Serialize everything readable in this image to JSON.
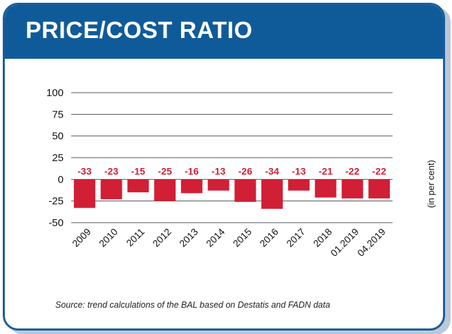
{
  "header": {
    "title": "PRICE/COST RATIO"
  },
  "chart_data": {
    "type": "bar",
    "title": "PRICE/COST RATIO",
    "ylabel": "(in per cent)",
    "xlabel": "",
    "categories": [
      "2009",
      "2010",
      "2011",
      "2012",
      "2013",
      "2014",
      "2015",
      "2016",
      "2017",
      "2018",
      "01.2019",
      "04.2019"
    ],
    "values": [
      -33,
      -23,
      -15,
      -25,
      -16,
      -13,
      -26,
      -34,
      -13,
      -21,
      -22,
      -22
    ],
    "data_labels": [
      "-33",
      "-23",
      "-15",
      "-25",
      "-16",
      "-13",
      "-26",
      "-34",
      "-13",
      "-21",
      "-22",
      "-22"
    ],
    "ylim": [
      -50,
      100
    ],
    "yticks": [
      100,
      75,
      50,
      25,
      0,
      -25,
      -50
    ],
    "ytick_labels": [
      "100",
      "75",
      "50",
      "25",
      "0",
      "-25",
      "-50"
    ],
    "grid": true,
    "colors": {
      "bar": "#d11f35",
      "label": "#d11f35",
      "grid": "#555555",
      "header": "#0f5b9a"
    }
  },
  "source": {
    "text": "Source: trend calculations of the BAL based on Destatis and FADN data"
  }
}
